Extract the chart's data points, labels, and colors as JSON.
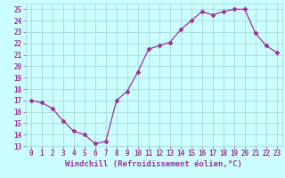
{
  "x": [
    0,
    1,
    2,
    3,
    4,
    5,
    6,
    7,
    8,
    9,
    10,
    11,
    12,
    13,
    14,
    15,
    16,
    17,
    18,
    19,
    20,
    21,
    22,
    23
  ],
  "y": [
    17,
    16.8,
    16.3,
    15.2,
    14.3,
    14.0,
    13.2,
    13.4,
    17.0,
    17.8,
    19.5,
    21.5,
    21.8,
    22.1,
    23.2,
    24.0,
    24.8,
    24.5,
    24.8,
    25.0,
    25.0,
    22.9,
    21.8,
    21.2
  ],
  "line_color": "#993399",
  "marker": "D",
  "marker_size": 2.5,
  "background_color": "#ccffff",
  "grid_color": "#aadddd",
  "xlabel": "Windchill (Refroidissement éolien,°C)",
  "ylim": [
    13,
    25.5
  ],
  "yticks": [
    13,
    14,
    15,
    16,
    17,
    18,
    19,
    20,
    21,
    22,
    23,
    24,
    25
  ],
  "xlim": [
    -0.5,
    23.5
  ],
  "xticks": [
    0,
    1,
    2,
    3,
    4,
    5,
    6,
    7,
    8,
    9,
    10,
    11,
    12,
    13,
    14,
    15,
    16,
    17,
    18,
    19,
    20,
    21,
    22,
    23
  ],
  "tick_label_color": "#993399",
  "tick_label_size": 5.5,
  "xlabel_color": "#993399",
  "xlabel_size": 6.5
}
